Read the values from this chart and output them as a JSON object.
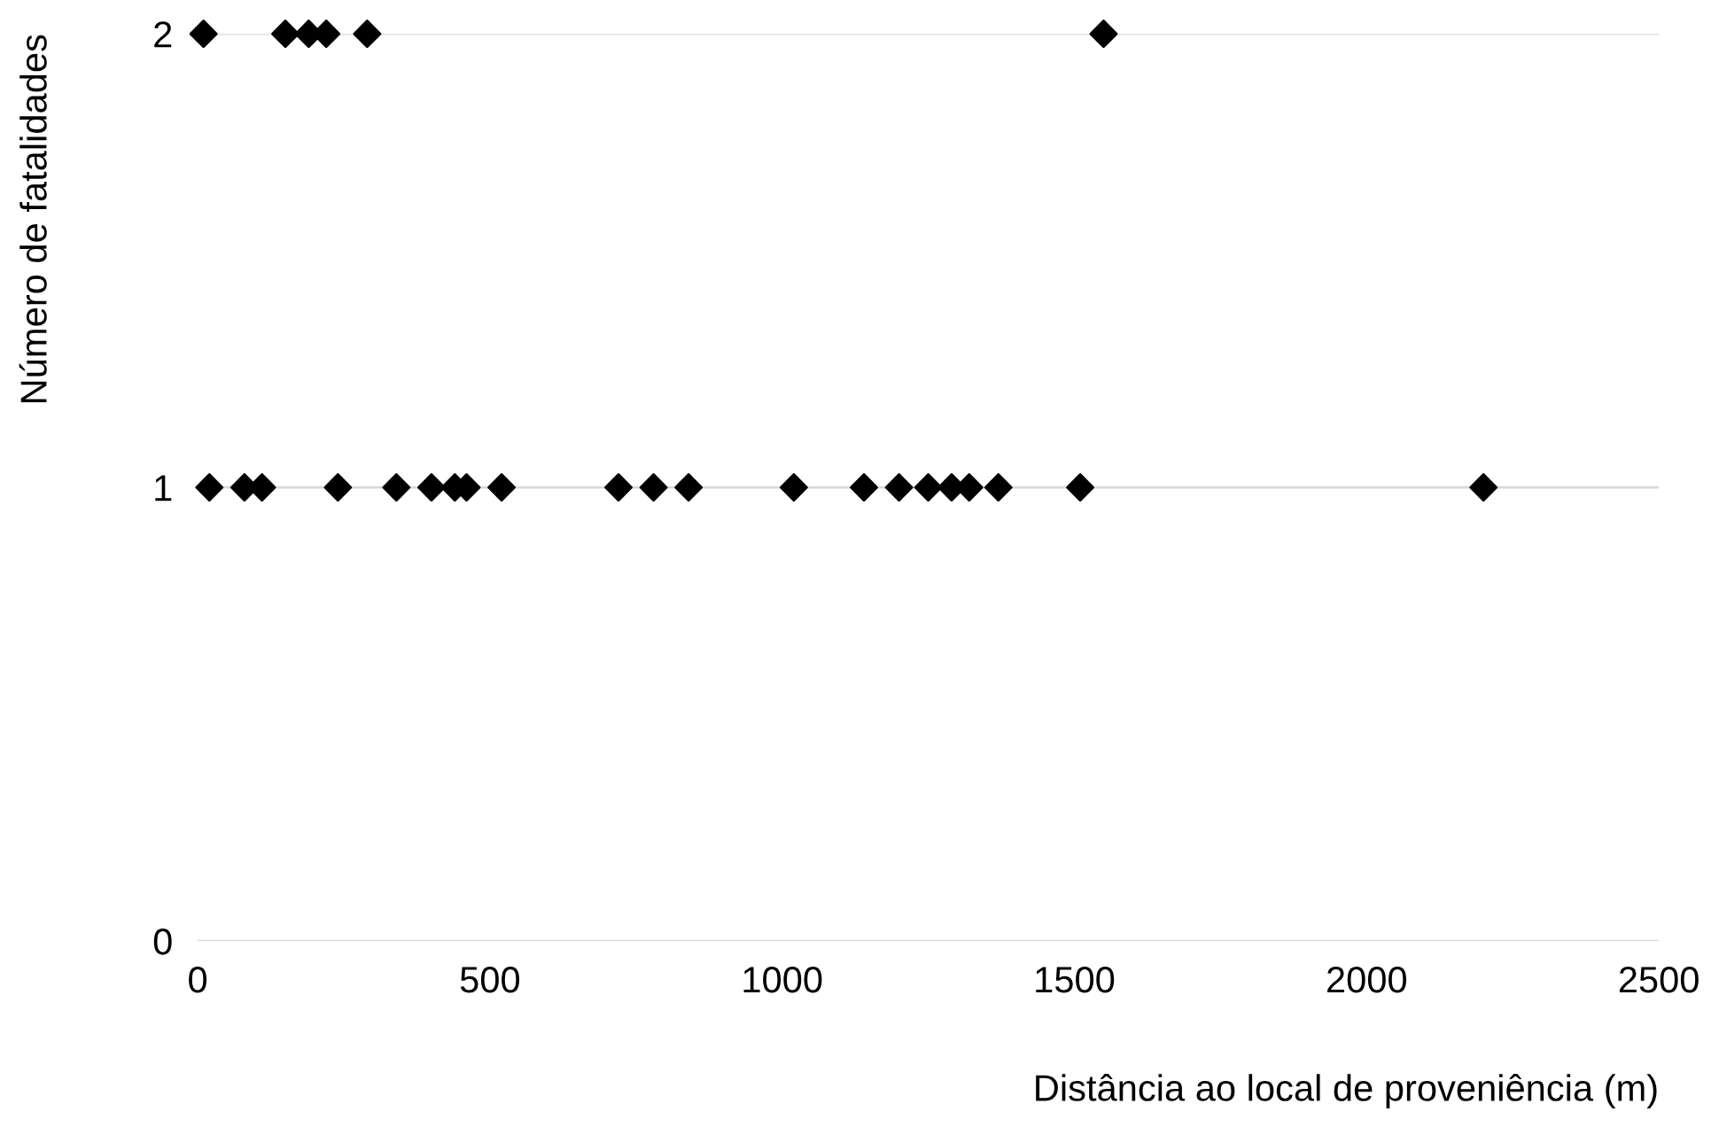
{
  "chart_data": {
    "type": "scatter",
    "xlabel": "Distância ao local de proveniência (m)",
    "ylabel": "Número de fatalidades",
    "series": [
      {
        "color": "#000000",
        "x": [
          10,
          150,
          190,
          220,
          290,
          1550,
          20,
          80,
          110,
          240,
          340,
          400,
          440,
          460,
          520,
          720,
          780,
          840,
          1020,
          1140,
          1200,
          1250,
          1290,
          1320,
          1370,
          1510,
          2200
        ],
        "values": [
          2,
          2,
          2,
          2,
          2,
          2,
          1,
          1,
          1,
          1,
          1,
          1,
          1,
          1,
          1,
          1,
          1,
          1,
          1,
          1,
          1,
          1,
          1,
          1,
          1,
          1,
          1
        ]
      }
    ],
    "marker": "diamond",
    "xlim": [
      0,
      2500
    ],
    "xticks": [
      0,
      500,
      1000,
      1500,
      2000,
      2500
    ],
    "ylim": [
      0,
      2
    ],
    "yticks": [
      0,
      1,
      2
    ],
    "grid": "y",
    "legend": false
  }
}
